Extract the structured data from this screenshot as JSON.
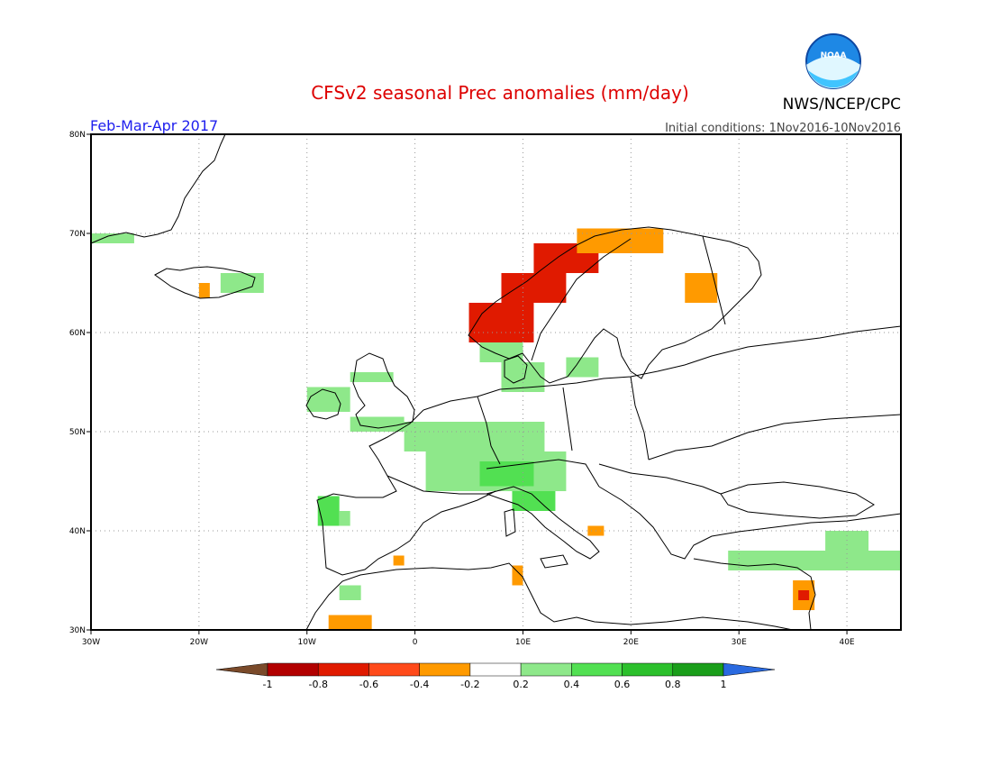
{
  "title": "CFSv2 seasonal Prec anomalies (mm/day)",
  "season": "Feb-Mar-Apr 2017",
  "initial_conditions": "Initial conditions: 1Nov2016-10Nov2016",
  "agency": "NWS/NCEP/CPC",
  "logo_text": "NOAA",
  "colors": {
    "title": "#dd0000",
    "season": "#2020ee",
    "land_outline": "#000000",
    "grid": "#999999"
  },
  "map": {
    "lon_range": [
      -30,
      45
    ],
    "lat_range": [
      30,
      80
    ],
    "lon_ticks": [
      {
        "value": -30,
        "label": "30W"
      },
      {
        "value": -20,
        "label": "20W"
      },
      {
        "value": -10,
        "label": "10W"
      },
      {
        "value": 0,
        "label": "0"
      },
      {
        "value": 10,
        "label": "10E"
      },
      {
        "value": 20,
        "label": "20E"
      },
      {
        "value": 30,
        "label": "30E"
      },
      {
        "value": 40,
        "label": "40E"
      }
    ],
    "lat_ticks": [
      {
        "value": 30,
        "label": "30N"
      },
      {
        "value": 40,
        "label": "40N"
      },
      {
        "value": 50,
        "label": "50N"
      },
      {
        "value": 60,
        "label": "60N"
      },
      {
        "value": 70,
        "label": "70N"
      },
      {
        "value": 80,
        "label": "80N"
      }
    ],
    "grid": true
  },
  "colorbar": {
    "labels": [
      "-1",
      "-0.8",
      "-0.6",
      "-0.4",
      "-0.2",
      "0.2",
      "0.4",
      "0.6",
      "0.8",
      "1"
    ],
    "colors": [
      "#7a4a2a",
      "#b20000",
      "#e01a00",
      "#ff4a1a",
      "#ff9a00",
      "#ffffff",
      "#8ee88a",
      "#52e052",
      "#2cc02c",
      "#1a9e1a",
      "#2a6ae0"
    ]
  },
  "anomaly_cells": [
    {
      "lon1": -30,
      "lon2": -26,
      "lat1": 69,
      "lat2": 70,
      "color": "#8ee88a"
    },
    {
      "lon1": -20,
      "lon2": -19,
      "lat1": 63.5,
      "lat2": 65,
      "color": "#ff9a00"
    },
    {
      "lon1": -18,
      "lon2": -14,
      "lat1": 64,
      "lat2": 66,
      "color": "#8ee88a"
    },
    {
      "lon1": -10,
      "lon2": -6,
      "lat1": 52,
      "lat2": 54.5,
      "color": "#8ee88a"
    },
    {
      "lon1": -6,
      "lon2": -2,
      "lat1": 55,
      "lat2": 56,
      "color": "#8ee88a"
    },
    {
      "lon1": -6,
      "lon2": -1,
      "lat1": 50,
      "lat2": 51.5,
      "color": "#8ee88a"
    },
    {
      "lon1": -1,
      "lon2": 12,
      "lat1": 48,
      "lat2": 51,
      "color": "#8ee88a"
    },
    {
      "lon1": 1,
      "lon2": 14,
      "lat1": 44,
      "lat2": 48,
      "color": "#8ee88a"
    },
    {
      "lon1": 6,
      "lon2": 11,
      "lat1": 44.5,
      "lat2": 47,
      "color": "#52e052"
    },
    {
      "lon1": 9,
      "lon2": 13,
      "lat1": 42,
      "lat2": 44,
      "color": "#52e052"
    },
    {
      "lon1": -9,
      "lon2": -7,
      "lat1": 40.5,
      "lat2": 43.5,
      "color": "#52e052"
    },
    {
      "lon1": -7,
      "lon2": -6,
      "lat1": 40.5,
      "lat2": 42,
      "color": "#8ee88a"
    },
    {
      "lon1": 6,
      "lon2": 10,
      "lat1": 57,
      "lat2": 61,
      "color": "#8ee88a"
    },
    {
      "lon1": 8,
      "lon2": 12,
      "lat1": 54,
      "lat2": 57,
      "color": "#8ee88a"
    },
    {
      "lon1": 14,
      "lon2": 17,
      "lat1": 55.5,
      "lat2": 57.5,
      "color": "#8ee88a"
    },
    {
      "lon1": 5,
      "lon2": 11,
      "lat1": 59,
      "lat2": 63,
      "color": "#e01a00"
    },
    {
      "lon1": 8,
      "lon2": 14,
      "lat1": 63,
      "lat2": 66,
      "color": "#e01a00"
    },
    {
      "lon1": 11,
      "lon2": 17,
      "lat1": 66,
      "lat2": 69,
      "color": "#e01a00"
    },
    {
      "lon1": 15,
      "lon2": 23,
      "lat1": 68,
      "lat2": 70.5,
      "color": "#ff9a00"
    },
    {
      "lon1": 25,
      "lon2": 28,
      "lat1": 63,
      "lat2": 66,
      "color": "#ff9a00"
    },
    {
      "lon1": -8,
      "lon2": -4,
      "lat1": 30,
      "lat2": 31.5,
      "color": "#ff9a00"
    },
    {
      "lon1": -7,
      "lon2": -5,
      "lat1": 33,
      "lat2": 34.5,
      "color": "#8ee88a"
    },
    {
      "lon1": -2,
      "lon2": -1,
      "lat1": 36.5,
      "lat2": 37.5,
      "color": "#ff9a00"
    },
    {
      "lon1": 9,
      "lon2": 10,
      "lat1": 34.5,
      "lat2": 36.5,
      "color": "#ff9a00"
    },
    {
      "lon1": 16,
      "lon2": 17.5,
      "lat1": 39.5,
      "lat2": 40.5,
      "color": "#ff9a00"
    },
    {
      "lon1": 29,
      "lon2": 45,
      "lat1": 36,
      "lat2": 38,
      "color": "#8ee88a"
    },
    {
      "lon1": 38,
      "lon2": 42,
      "lat1": 38,
      "lat2": 40,
      "color": "#8ee88a"
    },
    {
      "lon1": 35,
      "lon2": 37,
      "lat1": 32,
      "lat2": 35,
      "color": "#ff9a00"
    },
    {
      "lon1": 35.5,
      "lon2": 36.5,
      "lat1": 33,
      "lat2": 34,
      "color": "#e01a00"
    }
  ]
}
